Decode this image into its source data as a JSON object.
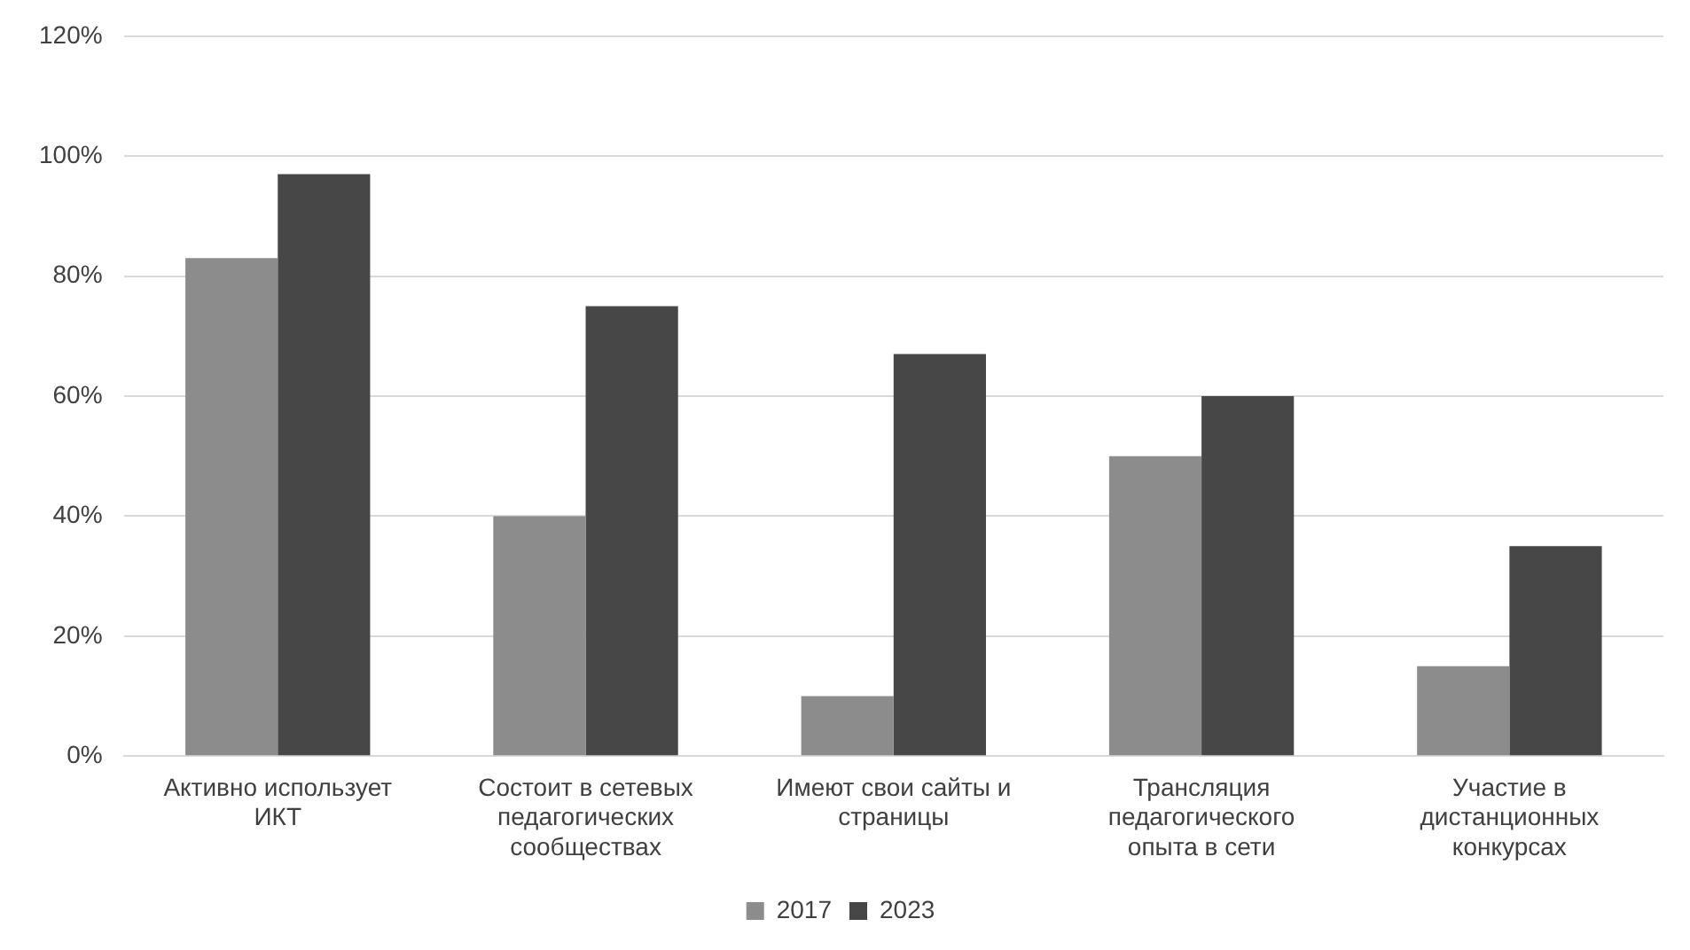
{
  "chart_data": {
    "type": "bar",
    "categories": [
      "Активно использует ИКТ",
      "Состоит в сетевых педагогических сообществах",
      "Имеют свои сайты и страницы",
      "Трансляция педагогического опыта в сети",
      "Участие в дистанционных конкурсах"
    ],
    "series": [
      {
        "name": "2017",
        "color": "#8c8c8c",
        "values": [
          83,
          40,
          10,
          50,
          15
        ]
      },
      {
        "name": "2023",
        "color": "#474747",
        "values": [
          97,
          75,
          67,
          60,
          35
        ]
      }
    ],
    "ylim": [
      0,
      120
    ],
    "yticks": [
      {
        "value": 0,
        "label": "0%"
      },
      {
        "value": 20,
        "label": "20%"
      },
      {
        "value": 40,
        "label": "40%"
      },
      {
        "value": 60,
        "label": "60%"
      },
      {
        "value": 80,
        "label": "80%"
      },
      {
        "value": 100,
        "label": "100%"
      },
      {
        "value": 120,
        "label": "120%"
      }
    ],
    "grid": "y",
    "legend": "bottom"
  }
}
